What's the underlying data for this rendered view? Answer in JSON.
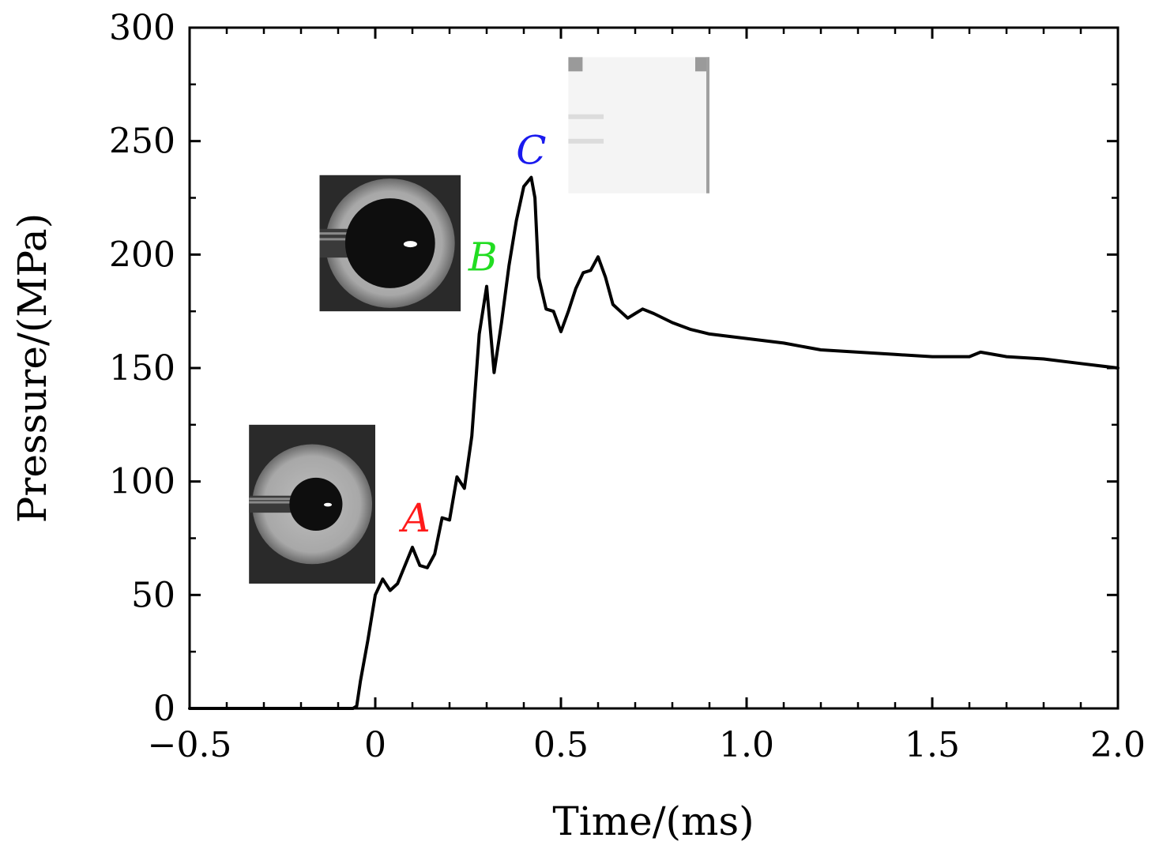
{
  "chart_data": {
    "type": "line",
    "title": "",
    "xlabel": "Time/(ms)",
    "ylabel": "Pressure/(MPa)",
    "xlim": [
      -0.5,
      2.0
    ],
    "ylim": [
      0,
      300
    ],
    "grid": false,
    "x_ticks": [
      -0.5,
      0,
      0.5,
      1.0,
      1.5,
      2.0
    ],
    "x_tick_labels": [
      "−0.5",
      "0",
      "0.5",
      "1.0",
      "1.5",
      "2.0"
    ],
    "y_ticks": [
      0,
      50,
      100,
      150,
      200,
      250,
      300
    ],
    "y_tick_labels": [
      "0",
      "50",
      "100",
      "150",
      "200",
      "250",
      "300"
    ],
    "series": [
      {
        "x": [
          -0.5,
          -0.4,
          -0.3,
          -0.2,
          -0.1,
          -0.06,
          -0.05,
          -0.04,
          -0.02,
          0.0,
          0.02,
          0.04,
          0.06,
          0.08,
          0.1,
          0.12,
          0.14,
          0.16,
          0.18,
          0.2,
          0.22,
          0.24,
          0.26,
          0.28,
          0.3,
          0.32,
          0.34,
          0.36,
          0.38,
          0.4,
          0.42,
          0.43,
          0.44,
          0.46,
          0.48,
          0.5,
          0.52,
          0.54,
          0.56,
          0.58,
          0.6,
          0.62,
          0.64,
          0.66,
          0.68,
          0.7,
          0.72,
          0.75,
          0.8,
          0.85,
          0.9,
          1.0,
          1.1,
          1.2,
          1.3,
          1.4,
          1.5,
          1.6,
          1.63,
          1.7,
          1.8,
          1.9,
          2.0
        ],
        "y": [
          0,
          0,
          0,
          0,
          0,
          0,
          1,
          12,
          30,
          50,
          57,
          52,
          55,
          63,
          71,
          63,
          62,
          68,
          84,
          83,
          102,
          97,
          120,
          165,
          186,
          148,
          170,
          195,
          215,
          230,
          234,
          225,
          190,
          176,
          175,
          166,
          175,
          185,
          192,
          193,
          199,
          190,
          178,
          175,
          172,
          174,
          176,
          174,
          170,
          167,
          165,
          163,
          161,
          158,
          157,
          156,
          155,
          155,
          157,
          155,
          154,
          152,
          150
        ]
      }
    ],
    "annotations": [
      {
        "text": "A",
        "color": "#ff1a1a",
        "x": 0.11,
        "y": 78
      },
      {
        "text": "B",
        "color": "#22dd22",
        "x": 0.29,
        "y": 193
      },
      {
        "text": "C",
        "color": "#1a1aee",
        "x": 0.42,
        "y": 240
      }
    ],
    "inset_images": [
      {
        "name": "droplet-small-inset",
        "x": [
          -0.34,
          0.0
        ],
        "y": [
          55,
          125
        ]
      },
      {
        "name": "droplet-large-inset",
        "x": [
          -0.15,
          0.23
        ],
        "y": [
          175,
          235
        ]
      },
      {
        "name": "flash-inset",
        "x": [
          0.52,
          0.9
        ],
        "y": [
          227,
          287
        ]
      }
    ]
  }
}
